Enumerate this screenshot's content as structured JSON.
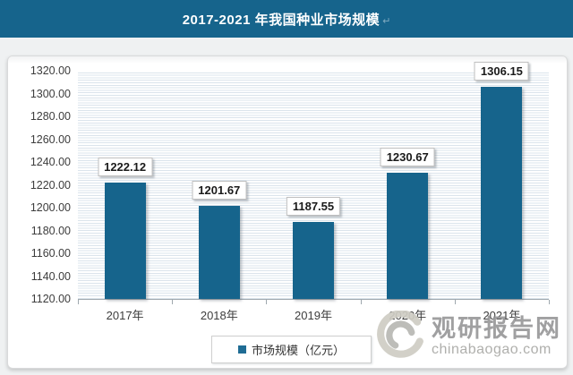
{
  "title": {
    "text": "2017-2021 年我国种业市场规模",
    "mark": "↵"
  },
  "colors": {
    "banner": "#16648C",
    "bar": "#16648C",
    "legend_swatch": "#1F6C94",
    "stripe_line": "#dbe4ec",
    "watermark_gray": "#98989a"
  },
  "legend": {
    "label": "市场规模（亿元）"
  },
  "watermark": {
    "site_name": "观研报告网",
    "domain": "chinabaogao.com",
    "logo": "swirl-logo"
  },
  "chart_data": {
    "type": "bar",
    "title": "2017-2021年我国种业市场规模",
    "categories": [
      "2017年",
      "2018年",
      "2019年",
      "2020年",
      "2021年"
    ],
    "series": [
      {
        "name": "市场规模（亿元）",
        "values": [
          1222.12,
          1201.67,
          1187.55,
          1230.67,
          1306.15
        ]
      }
    ],
    "value_labels": [
      "1222.12",
      "1201.67",
      "1187.55",
      "1230.67",
      "1306.15"
    ],
    "xlabel": "",
    "ylabel": "",
    "ylim": [
      1120,
      1320
    ],
    "ytick_step": 20,
    "yticks": [
      "1320.00",
      "1300.00",
      "1280.00",
      "1260.00",
      "1240.00",
      "1220.00",
      "1200.00",
      "1180.00",
      "1160.00",
      "1140.00",
      "1120.00"
    ],
    "grid": "fine-horizontal-stripes",
    "legend_position": "bottom"
  }
}
